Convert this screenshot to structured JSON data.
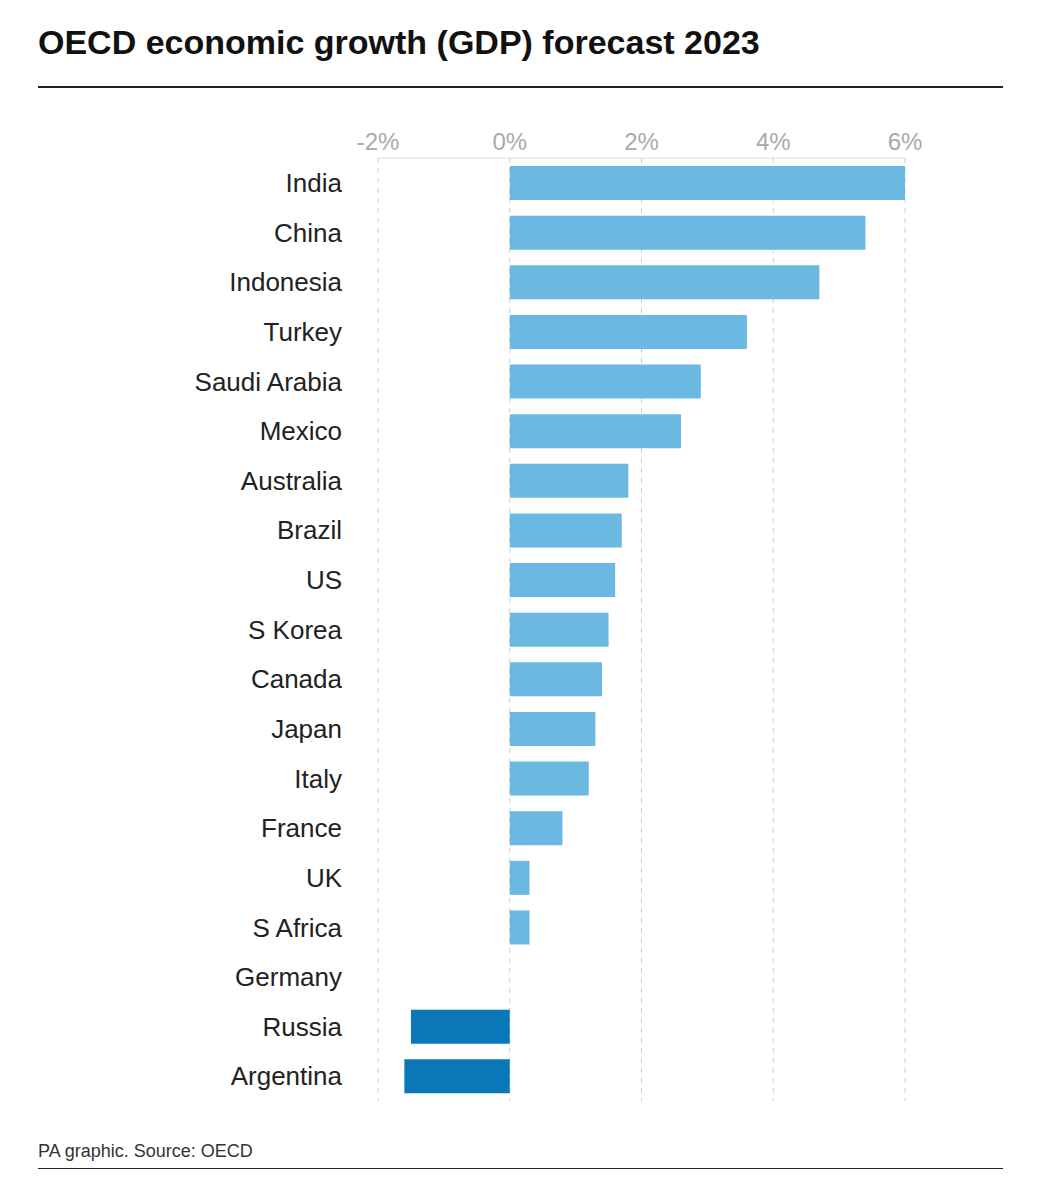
{
  "chart_data": {
    "type": "bar",
    "orientation": "horizontal",
    "title": "OECD economic growth (GDP) forecast 2023",
    "source": "PA graphic. Source: OECD",
    "categories": [
      "India",
      "China",
      "Indonesia",
      "Turkey",
      "Saudi Arabia",
      "Mexico",
      "Australia",
      "Brazil",
      "US",
      "S Korea",
      "Canada",
      "Japan",
      "Italy",
      "France",
      "UK",
      "S Africa",
      "Germany",
      "Russia",
      "Argentina"
    ],
    "values": [
      6.0,
      5.4,
      4.7,
      3.6,
      2.9,
      2.6,
      1.8,
      1.7,
      1.6,
      1.5,
      1.4,
      1.3,
      1.2,
      0.8,
      0.3,
      0.3,
      0,
      -1.5,
      -1.6
    ],
    "colors": [
      "#6bb8e3",
      "#6bb8e3",
      "#6bb8e3",
      "#6bb8e3",
      "#6bb8e3",
      "#6bb8e3",
      "#6bb8e3",
      "#6bb8e3",
      "#6bb8e3",
      "#6bb8e3",
      "#6bb8e3",
      "#6bb8e3",
      "#6bb8e3",
      "#6bb8e3",
      "#6bb8e3",
      "#6bb8e3",
      "#6bb8e3",
      "#0a77b8",
      "#0a77b8"
    ],
    "xlim": [
      -2,
      6
    ],
    "xticks": [
      {
        "value": -2,
        "label": "-2%"
      },
      {
        "value": 0,
        "label": "0%"
      },
      {
        "value": 2,
        "label": "2%"
      },
      {
        "value": 4,
        "label": "4%"
      },
      {
        "value": 6,
        "label": "6%"
      }
    ],
    "grid": true
  }
}
